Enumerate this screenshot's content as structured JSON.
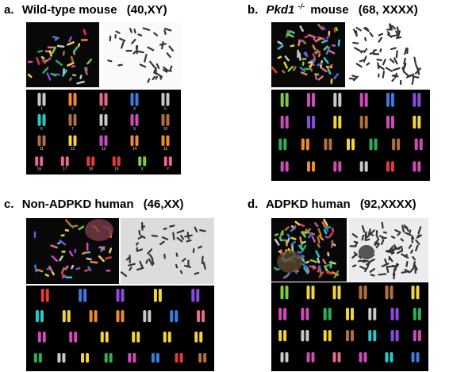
{
  "panels": [
    {
      "letter": "a.",
      "title": "Wild-type mouse",
      "karyotype": "(40,XY)",
      "chromosome_labels": [
        "1",
        "2",
        "3",
        "4",
        "5",
        "6",
        "7",
        "8",
        "9",
        "10",
        "11",
        "12",
        "13",
        "14",
        "15",
        "16",
        "17",
        "18",
        "19",
        "X",
        "Y"
      ]
    },
    {
      "letter": "b.",
      "title_italic": "Pkd1",
      "title_sup": "-/-",
      "title": "mouse",
      "karyotype": "(68, XXXX)"
    },
    {
      "letter": "c.",
      "title": "Non-ADPKD human",
      "karyotype": "(46,XX)"
    },
    {
      "letter": "d.",
      "title": "ADPKD human",
      "karyotype": "(92,XXXX)"
    }
  ]
}
